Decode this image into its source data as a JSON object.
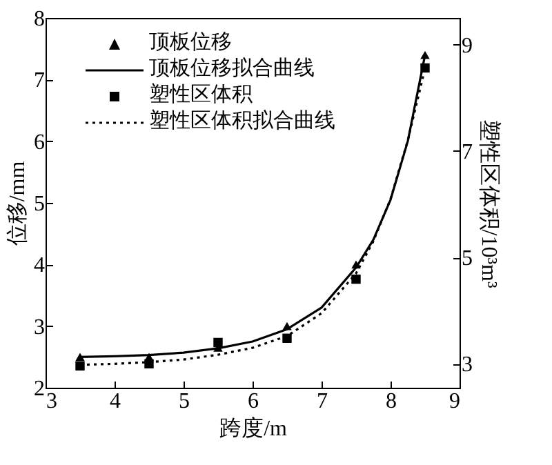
{
  "chart_data": {
    "type": "scatter",
    "xlabel": "跨度/m",
    "ylabel": "位移/mm",
    "y2label": "塑性区体积/10³m³",
    "xlim": [
      3,
      9
    ],
    "xticks": [
      3,
      4,
      5,
      6,
      7,
      8,
      9
    ],
    "ylim": [
      2,
      8
    ],
    "yticks": [
      2,
      3,
      4,
      5,
      6,
      7,
      8
    ],
    "y2lim": [
      2.55,
      9.5
    ],
    "y2ticks": [
      3,
      5,
      7,
      9
    ],
    "grid": false,
    "legend": "top left",
    "series": [
      {
        "name": "顶板位移",
        "marker": "triangle",
        "color": "#000000",
        "x": [
          3.5,
          4.5,
          5.5,
          6.5,
          7.5,
          8.5
        ],
        "values": [
          2.5,
          2.5,
          2.65,
          3.0,
          4.0,
          7.4
        ]
      },
      {
        "name": "顶板位移拟合曲线",
        "type": "line",
        "marker": "none",
        "line_style": "solid",
        "color": "#000000",
        "x": [
          3.5,
          4,
          4.5,
          5,
          5.5,
          6,
          6.5,
          7,
          7.5,
          7.75,
          8,
          8.25,
          8.5
        ],
        "values": [
          2.5,
          2.51,
          2.53,
          2.57,
          2.64,
          2.75,
          2.95,
          3.3,
          3.95,
          4.4,
          5.05,
          6.0,
          7.4
        ]
      },
      {
        "name": "塑性区体积",
        "marker": "square",
        "axis": "y2",
        "color": "#000000",
        "x": [
          3.5,
          4.5,
          5.5,
          6.5,
          7.5,
          8.5
        ],
        "values": [
          2.96,
          3.0,
          3.4,
          3.48,
          4.59,
          8.56
        ]
      },
      {
        "name": "塑性区体积拟合曲线",
        "type": "line",
        "marker": "none",
        "line_style": "dotted",
        "axis": "y2",
        "color": "#000000",
        "x": [
          3.5,
          4,
          4.5,
          5,
          5.5,
          6,
          6.5,
          7,
          7.5,
          7.75,
          8,
          8.25,
          8.5
        ],
        "values": [
          2.98,
          3.0,
          3.03,
          3.08,
          3.17,
          3.3,
          3.52,
          3.95,
          4.7,
          5.3,
          6.1,
          7.2,
          8.55
        ]
      }
    ]
  }
}
